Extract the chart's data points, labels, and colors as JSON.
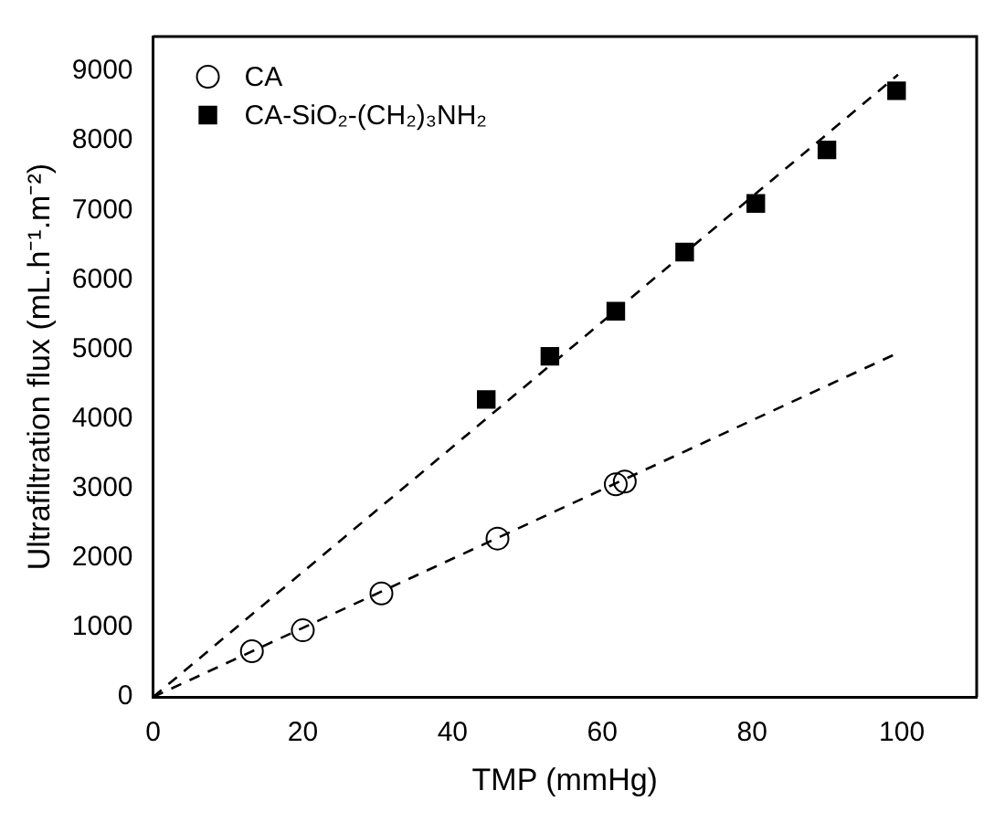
{
  "chart_data": {
    "type": "scatter",
    "xlabel": "TMP (mmHg)",
    "ylabel": "Ultrafiltration flux (mL.h⁻¹.m⁻²)",
    "xlim": [
      0,
      110
    ],
    "xticks": [
      0,
      20,
      40,
      60,
      80,
      100
    ],
    "ylim": [
      0,
      9500
    ],
    "yticks": [
      0,
      1000,
      2000,
      3000,
      4000,
      5000,
      6000,
      7000,
      8000,
      9000
    ],
    "grid": false,
    "legend": "top left",
    "series": [
      {
        "name": "CA",
        "marker": "circle",
        "color": "#000000",
        "x": [
          13.2,
          20,
          30.5,
          46,
          61.8,
          63
        ],
        "values": [
          660,
          960,
          1490,
          2280,
          3060,
          3100
        ]
      },
      {
        "name": "CA-SiO₂-(CH₂)₃NH₂",
        "marker": "square",
        "color": "#000000",
        "x": [
          44.5,
          53,
          61.8,
          71,
          80.5,
          90,
          99.3
        ],
        "values": [
          4280,
          4900,
          5550,
          6400,
          7100,
          7870,
          8720
        ]
      },
      {
        "type": "line",
        "marker": "none",
        "line_style": "dashed",
        "color": "#000000",
        "x": [
          0,
          99.5
        ],
        "values": [
          0,
          4950
        ]
      },
      {
        "type": "line",
        "marker": "none",
        "line_style": "dashed",
        "color": "#000000",
        "x": [
          0,
          99.5
        ],
        "values": [
          0,
          8950
        ]
      }
    ]
  }
}
